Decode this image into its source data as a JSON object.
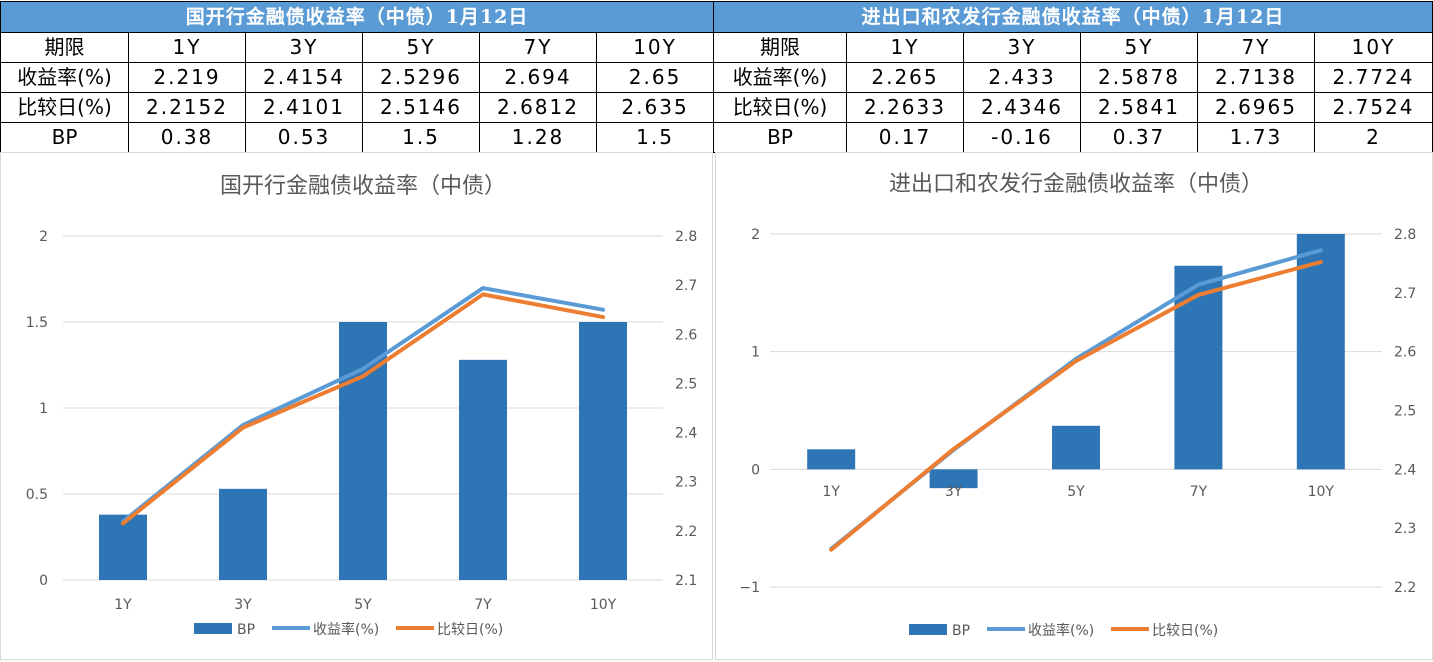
{
  "tables": [
    {
      "title": "国开行金融债收益率（中债）1月12日",
      "header_label": "期限",
      "columns": [
        "1Y",
        "3Y",
        "5Y",
        "7Y",
        "10Y"
      ],
      "rows": [
        {
          "label": "收益率(%)",
          "values": [
            "2.219",
            "2.4154",
            "2.5296",
            "2.694",
            "2.65"
          ]
        },
        {
          "label": "比较日(%)",
          "values": [
            "2.2152",
            "2.4101",
            "2.5146",
            "2.6812",
            "2.635"
          ]
        },
        {
          "label": "BP",
          "values": [
            "0.38",
            "0.53",
            "1.5",
            "1.28",
            "1.5"
          ]
        }
      ]
    },
    {
      "title": "进出口和农发行金融债收益率（中债）1月12日",
      "header_label": "期限",
      "columns": [
        "1Y",
        "3Y",
        "5Y",
        "7Y",
        "10Y"
      ],
      "rows": [
        {
          "label": "收益率(%)",
          "values": [
            "2.265",
            "2.433",
            "2.5878",
            "2.7138",
            "2.7724"
          ]
        },
        {
          "label": "比较日(%)",
          "values": [
            "2.2633",
            "2.4346",
            "2.5841",
            "2.6965",
            "2.7524"
          ]
        },
        {
          "label": "BP",
          "values": [
            "0.17",
            "-0.16",
            "0.37",
            "1.73",
            "2"
          ]
        }
      ]
    }
  ],
  "colors": {
    "header_bg": "#5b9bd5",
    "bar": "#2e75b6",
    "yield_line": "#5b9bd5",
    "compare_line": "#ed7d31",
    "grid": "#d9d9d9",
    "text": "#595959"
  },
  "chart_data": [
    {
      "type": "bar+line",
      "title": "国开行金融债收益率（中债）",
      "categories": [
        "1Y",
        "3Y",
        "5Y",
        "7Y",
        "10Y"
      ],
      "series": [
        {
          "name": "BP",
          "kind": "bar",
          "axis": "left",
          "values": [
            0.38,
            0.53,
            1.5,
            1.28,
            1.5
          ]
        },
        {
          "name": "收益率(%)",
          "kind": "line",
          "axis": "right",
          "values": [
            2.219,
            2.4154,
            2.5296,
            2.694,
            2.65
          ]
        },
        {
          "name": "比较日(%)",
          "kind": "line",
          "axis": "right",
          "values": [
            2.2152,
            2.4101,
            2.5146,
            2.6812,
            2.635
          ]
        }
      ],
      "y_left": {
        "min": 0,
        "max": 2,
        "ticks": [
          0,
          0.5,
          1,
          1.5,
          2
        ],
        "labels": [
          "0",
          "0.5",
          "1",
          "1.5",
          "2"
        ]
      },
      "y_right": {
        "min": 2.1,
        "max": 2.8,
        "ticks": [
          2.1,
          2.2,
          2.3,
          2.4,
          2.5,
          2.6,
          2.7,
          2.8
        ],
        "labels": [
          "2.1",
          "2.2",
          "2.3",
          "2.4",
          "2.5",
          "2.6",
          "2.7",
          "2.8"
        ]
      },
      "grid": true,
      "legend": "bottom"
    },
    {
      "type": "bar+line",
      "title": "进出口和农发行金融债收益率（中债）",
      "categories": [
        "1Y",
        "3Y",
        "5Y",
        "7Y",
        "10Y"
      ],
      "series": [
        {
          "name": "BP",
          "kind": "bar",
          "axis": "left",
          "values": [
            0.17,
            -0.16,
            0.37,
            1.73,
            2
          ]
        },
        {
          "name": "收益率(%)",
          "kind": "line",
          "axis": "right",
          "values": [
            2.265,
            2.433,
            2.5878,
            2.7138,
            2.7724
          ]
        },
        {
          "name": "比较日(%)",
          "kind": "line",
          "axis": "right",
          "values": [
            2.2633,
            2.4346,
            2.5841,
            2.6965,
            2.7524
          ]
        }
      ],
      "y_left": {
        "min": -1,
        "max": 2,
        "ticks": [
          -1,
          0,
          1,
          2
        ],
        "labels": [
          "−1",
          "0",
          "1",
          "2"
        ]
      },
      "y_right": {
        "min": 2.2,
        "max": 2.8,
        "ticks": [
          2.2,
          2.3,
          2.4,
          2.5,
          2.6,
          2.7,
          2.8
        ],
        "labels": [
          "2.2",
          "2.3",
          "2.4",
          "2.5",
          "2.6",
          "2.7",
          "2.8"
        ]
      },
      "grid": true,
      "legend": "bottom"
    }
  ]
}
